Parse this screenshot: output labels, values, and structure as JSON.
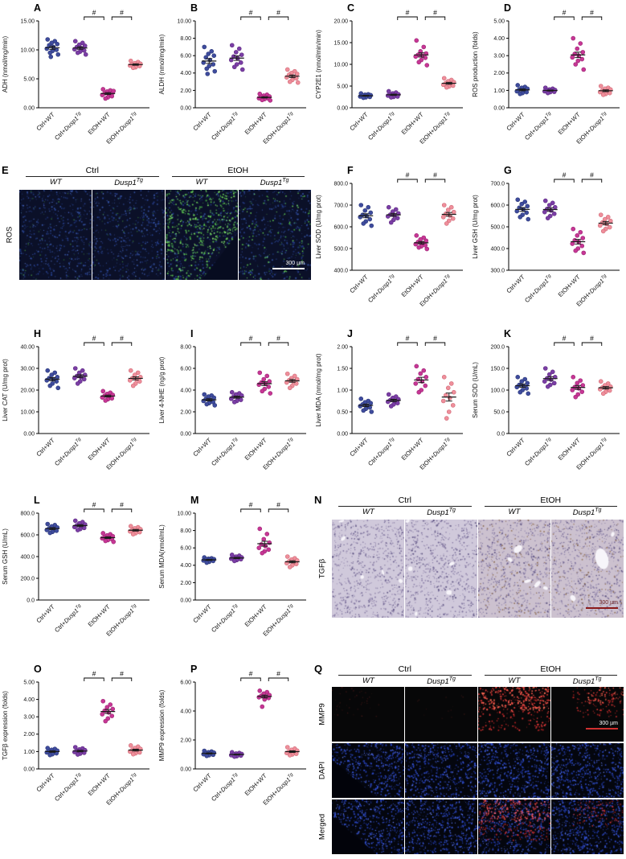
{
  "chart_data": {
    "type": "scatter",
    "categories": [
      "Ctrl+WT",
      "Ctrl+Dusp1Tg",
      "EtOH+WT",
      "EtOH+Dusp1Tg"
    ],
    "colors": [
      "#3f4c9e",
      "#7b3ea6",
      "#c73795",
      "#ef8f9b"
    ],
    "edge_colors": [
      "#2c3878",
      "#5e2c80",
      "#9c2575",
      "#d06a78"
    ],
    "sig_symbol": "#",
    "legend": "none",
    "error_bars": "mean ± SEM",
    "significance_note": "# brackets between categories 2-3 and 3-4 in every panel",
    "panels": [
      {
        "letter": "A",
        "ylabel": "ADH (nmol/mg/min)",
        "ymin": 0,
        "ymax": 15,
        "yticks": [
          "0.00",
          "5.00",
          "10.00",
          "15.00"
        ],
        "sig": [
          [
            2,
            3
          ],
          [
            3,
            4
          ]
        ],
        "points": [
          [
            11.8,
            11.5,
            11.2,
            11.0,
            10.8,
            10.5,
            10.2,
            10.0,
            9.8,
            9.5,
            9.2,
            8.8
          ],
          [
            11.5,
            11.2,
            10.9,
            10.7,
            10.5,
            10.3,
            10.1,
            9.9,
            9.7,
            9.5,
            9.2
          ],
          [
            3.2,
            3.0,
            2.8,
            2.6,
            2.5,
            2.4,
            2.2,
            2.0,
            1.8,
            1.6,
            2.9
          ],
          [
            8.1,
            7.9,
            7.7,
            7.6,
            7.5,
            7.4,
            7.3,
            7.2,
            7.0,
            6.9
          ]
        ]
      },
      {
        "letter": "B",
        "ylabel": "ALDH (nmol/mg/min)",
        "ymin": 0,
        "ymax": 10,
        "yticks": [
          "0.00",
          "2.00",
          "4.00",
          "6.00",
          "8.00",
          "10.00"
        ],
        "sig": [
          [
            2,
            3
          ],
          [
            3,
            4
          ]
        ],
        "points": [
          [
            7.0,
            6.5,
            6.2,
            6.0,
            5.8,
            5.5,
            5.2,
            5.0,
            4.8,
            4.5,
            4.2,
            3.9
          ],
          [
            7.2,
            6.8,
            6.4,
            6.1,
            5.9,
            5.7,
            5.5,
            5.2,
            5.0,
            4.7,
            4.4
          ],
          [
            1.6,
            1.5,
            1.4,
            1.3,
            1.25,
            1.2,
            1.1,
            1.05,
            1.0,
            0.9,
            0.85
          ],
          [
            4.4,
            4.2,
            4.0,
            3.9,
            3.8,
            3.6,
            3.5,
            3.4,
            3.2,
            3.0,
            2.9
          ]
        ]
      },
      {
        "letter": "C",
        "ylabel": "CYP2E1 (nmol/min/min)",
        "ymin": 0,
        "ymax": 20,
        "yticks": [
          "0.00",
          "5.00",
          "10.00",
          "15.00",
          "20.00"
        ],
        "sig": [
          [
            2,
            3
          ],
          [
            3,
            4
          ]
        ],
        "points": [
          [
            3.3,
            3.1,
            3.0,
            2.9,
            2.8,
            2.7,
            2.6,
            2.5,
            2.4,
            2.3
          ],
          [
            3.8,
            3.5,
            3.3,
            3.1,
            3.0,
            2.9,
            2.8,
            2.6,
            2.5,
            2.4
          ],
          [
            15.5,
            14.0,
            13.0,
            12.5,
            12.2,
            12.0,
            11.8,
            11.5,
            11.0,
            10.5,
            9.8
          ],
          [
            6.8,
            6.4,
            6.1,
            5.9,
            5.7,
            5.5,
            5.3,
            5.1,
            4.9,
            4.7
          ]
        ]
      },
      {
        "letter": "D",
        "ylabel": "ROS production (folds)",
        "ymin": 0,
        "ymax": 5,
        "yticks": [
          "0.00",
          "1.00",
          "2.00",
          "3.00",
          "4.00",
          "5.00"
        ],
        "sig": [
          [
            2,
            3
          ],
          [
            3,
            4
          ]
        ],
        "points": [
          [
            1.3,
            1.2,
            1.15,
            1.1,
            1.05,
            1.0,
            0.95,
            0.9,
            0.85,
            0.8
          ],
          [
            1.15,
            1.1,
            1.05,
            1.02,
            1.0,
            0.98,
            0.95,
            0.92,
            0.9,
            0.85
          ],
          [
            4.0,
            3.7,
            3.4,
            3.2,
            3.1,
            3.0,
            2.9,
            2.8,
            2.7,
            2.5,
            2.2
          ],
          [
            1.25,
            1.15,
            1.1,
            1.05,
            1.0,
            0.95,
            0.9,
            0.85,
            0.8,
            0.75
          ]
        ]
      },
      {
        "letter": "F",
        "ylabel": "Liver SOD (U/mg prot)",
        "ymin": 400,
        "ymax": 800,
        "yticks": [
          "400.0",
          "500.0",
          "600.0",
          "700.0",
          "800.0"
        ],
        "sig": [
          [
            2,
            3
          ],
          [
            3,
            4
          ]
        ],
        "points": [
          [
            700,
            690,
            675,
            665,
            655,
            650,
            645,
            635,
            625,
            615,
            605
          ],
          [
            690,
            680,
            670,
            662,
            656,
            652,
            648,
            640,
            632,
            620
          ],
          [
            560,
            550,
            542,
            536,
            530,
            525,
            520,
            515,
            510,
            505,
            498
          ],
          [
            700,
            690,
            678,
            668,
            660,
            652,
            645,
            638,
            628,
            615
          ]
        ]
      },
      {
        "letter": "G",
        "ylabel": "Liver GSH (U/mg prot)",
        "ymin": 300,
        "ymax": 700,
        "yticks": [
          "300.0",
          "400.0",
          "500.0",
          "600.0",
          "700.0"
        ],
        "sig": [
          [
            2,
            3
          ],
          [
            3,
            4
          ]
        ],
        "points": [
          [
            625,
            615,
            605,
            595,
            588,
            580,
            572,
            565,
            555,
            545,
            535
          ],
          [
            620,
            610,
            600,
            590,
            582,
            575,
            568,
            560,
            550,
            540
          ],
          [
            490,
            475,
            460,
            448,
            438,
            430,
            422,
            412,
            400,
            390,
            380
          ],
          [
            555,
            545,
            535,
            527,
            520,
            513,
            506,
            498,
            490,
            480
          ]
        ]
      },
      {
        "letter": "H",
        "ylabel": "Liver CAT (U/mg prot)",
        "ymin": 0,
        "ymax": 40,
        "yticks": [
          "0.00",
          "10.00",
          "20.00",
          "30.00",
          "40.00"
        ],
        "sig": [
          [
            2,
            3
          ],
          [
            3,
            4
          ]
        ],
        "points": [
          [
            29,
            28,
            27,
            26,
            25.5,
            25,
            24.5,
            24,
            23,
            22,
            21
          ],
          [
            30,
            29,
            28,
            27,
            26.5,
            26,
            25.5,
            25,
            24,
            23
          ],
          [
            19.5,
            18.8,
            18.2,
            17.8,
            17.4,
            17.0,
            16.6,
            16.2,
            15.8,
            15.2
          ],
          [
            29,
            28,
            27,
            26,
            25.5,
            25,
            24.5,
            24,
            23,
            22
          ]
        ]
      },
      {
        "letter": "I",
        "ylabel": "Liver 4-NHE (ng/g prot)",
        "ymin": 0,
        "ymax": 8,
        "yticks": [
          "0.00",
          "2.00",
          "4.00",
          "6.00",
          "8.00"
        ],
        "sig": [
          [
            2,
            3
          ],
          [
            3,
            4
          ]
        ],
        "points": [
          [
            3.6,
            3.5,
            3.4,
            3.3,
            3.2,
            3.1,
            3.0,
            2.9,
            2.8,
            2.7,
            2.6
          ],
          [
            3.8,
            3.7,
            3.6,
            3.5,
            3.4,
            3.3,
            3.2,
            3.1,
            3.0,
            2.9
          ],
          [
            5.6,
            5.3,
            5.0,
            4.8,
            4.7,
            4.6,
            4.5,
            4.3,
            4.1,
            3.9,
            3.7
          ],
          [
            5.5,
            5.3,
            5.1,
            5.0,
            4.9,
            4.8,
            4.7,
            4.6,
            4.4,
            4.2
          ]
        ]
      },
      {
        "letter": "J",
        "ylabel": "Liver MDA (nmol/mg prot)",
        "ymin": 0,
        "ymax": 2,
        "yticks": [
          "0.00",
          "0.50",
          "1.00",
          "1.50",
          "2.00"
        ],
        "sig": [
          [
            2,
            3
          ],
          [
            3,
            4
          ]
        ],
        "points": [
          [
            0.8,
            0.75,
            0.72,
            0.7,
            0.67,
            0.65,
            0.63,
            0.6,
            0.57,
            0.53,
            0.5
          ],
          [
            0.9,
            0.85,
            0.82,
            0.79,
            0.77,
            0.75,
            0.73,
            0.7,
            0.67,
            0.63
          ],
          [
            1.55,
            1.45,
            1.38,
            1.3,
            1.25,
            1.2,
            1.15,
            1.1,
            1.0,
            0.95
          ],
          [
            1.3,
            1.15,
            1.05,
            0.95,
            0.88,
            0.82,
            0.75,
            0.65,
            0.5,
            0.35
          ]
        ]
      },
      {
        "letter": "K",
        "ylabel": "Serum SOD (U/mL)",
        "ymin": 0,
        "ymax": 200,
        "yticks": [
          "0.0",
          "50.0",
          "100.0",
          "150.0",
          "200.0"
        ],
        "sig": [
          [
            2,
            3
          ],
          [
            3,
            4
          ]
        ],
        "points": [
          [
            130,
            125,
            120,
            116,
            112,
            110,
            107,
            104,
            100,
            95,
            92
          ],
          [
            150,
            142,
            136,
            130,
            127,
            124,
            120,
            116,
            112,
            108
          ],
          [
            130,
            122,
            116,
            111,
            107,
            104,
            100,
            96,
            90,
            84
          ],
          [
            120,
            115,
            111,
            108,
            106,
            104,
            102,
            99,
            96,
            92
          ]
        ]
      },
      {
        "letter": "L",
        "ylabel": "Serum GSH (U/mL)",
        "ymin": 0,
        "ymax": 800,
        "yticks": [
          "0.0",
          "200.0",
          "400.0",
          "600.0",
          "800.0"
        ],
        "sig": [
          [
            2,
            3
          ],
          [
            3,
            4
          ]
        ],
        "points": [
          [
            700,
            690,
            678,
            668,
            660,
            652,
            645,
            638,
            628,
            618
          ],
          [
            730,
            718,
            706,
            696,
            688,
            680,
            672,
            664,
            654,
            644
          ],
          [
            615,
            605,
            595,
            588,
            580,
            574,
            568,
            560,
            552,
            544,
            536
          ],
          [
            680,
            670,
            660,
            652,
            645,
            638,
            632,
            625,
            616,
            606
          ]
        ]
      },
      {
        "letter": "M",
        "ylabel": "Serum MDA(nmol/mL)",
        "ymin": 0,
        "ymax": 10,
        "yticks": [
          "0.00",
          "2.00",
          "4.00",
          "6.00",
          "8.00",
          "10.00"
        ],
        "sig": [
          [
            2,
            3
          ],
          [
            3,
            4
          ]
        ],
        "points": [
          [
            4.9,
            4.8,
            4.75,
            4.7,
            4.65,
            4.6,
            4.55,
            4.5,
            4.4,
            4.3
          ],
          [
            5.2,
            5.1,
            5.0,
            4.9,
            4.85,
            4.8,
            4.75,
            4.7,
            4.6,
            4.5
          ],
          [
            8.2,
            7.6,
            7.0,
            6.6,
            6.4,
            6.2,
            6.0,
            5.8,
            5.6,
            5.4
          ],
          [
            5.0,
            4.8,
            4.65,
            4.55,
            4.45,
            4.35,
            4.25,
            4.15,
            4.0,
            3.8
          ]
        ]
      },
      {
        "letter": "O",
        "ylabel": "TGFβ expression (folds)",
        "ymin": 0,
        "ymax": 5,
        "yticks": [
          "0.00",
          "1.00",
          "2.00",
          "3.00",
          "4.00",
          "5.00"
        ],
        "sig": [
          [
            2,
            3
          ],
          [
            3,
            4
          ]
        ],
        "points": [
          [
            1.2,
            1.15,
            1.1,
            1.05,
            1.0,
            0.98,
            0.95,
            0.9,
            0.85,
            0.8
          ],
          [
            1.25,
            1.18,
            1.12,
            1.08,
            1.04,
            1.0,
            0.97,
            0.93,
            0.88,
            0.83
          ],
          [
            3.9,
            3.7,
            3.55,
            3.45,
            3.35,
            3.25,
            3.15,
            3.05,
            2.9,
            2.75
          ],
          [
            1.35,
            1.28,
            1.2,
            1.15,
            1.1,
            1.05,
            1.0,
            0.95,
            0.9,
            0.85
          ]
        ]
      },
      {
        "letter": "P",
        "ylabel": "MMP9 expression (folds)",
        "ymin": 0,
        "ymax": 6,
        "yticks": [
          "0.00",
          "2.00",
          "4.00",
          "6.00"
        ],
        "sig": [
          [
            2,
            3
          ],
          [
            3,
            4
          ]
        ],
        "points": [
          [
            1.25,
            1.2,
            1.15,
            1.12,
            1.08,
            1.05,
            1.02,
            0.98,
            0.95,
            0.9
          ],
          [
            1.15,
            1.1,
            1.06,
            1.03,
            1.0,
            0.98,
            0.95,
            0.92,
            0.88,
            0.85
          ],
          [
            5.4,
            5.3,
            5.2,
            5.1,
            5.05,
            5.0,
            4.95,
            4.9,
            4.8,
            4.3
          ],
          [
            1.5,
            1.4,
            1.32,
            1.26,
            1.2,
            1.15,
            1.1,
            1.05,
            1.0,
            0.95
          ]
        ]
      }
    ]
  },
  "micro": {
    "E": {
      "letter": "E",
      "row_label": "ROS",
      "group_headers": [
        "Ctrl",
        "EtOH"
      ],
      "col_labels": [
        "WT",
        "Dusp1Tg",
        "WT",
        "Dusp1Tg"
      ],
      "scale_bar": "300 µm"
    },
    "N": {
      "letter": "N",
      "row_label": "TGFβ",
      "group_headers": [
        "Ctrl",
        "EtOH"
      ],
      "col_labels": [
        "WT",
        "Dusp1Tg",
        "WT",
        "Dusp1Tg"
      ],
      "scale_bar": "300 µm"
    },
    "Q": {
      "letter": "Q",
      "row_labels": [
        "MMP9",
        "DAPI",
        "Merged"
      ],
      "group_headers": [
        "Ctrl",
        "EtOH"
      ],
      "col_labels": [
        "WT",
        "Dusp1Tg",
        "WT",
        "Dusp1Tg"
      ],
      "scale_bar": "300 µm"
    }
  }
}
